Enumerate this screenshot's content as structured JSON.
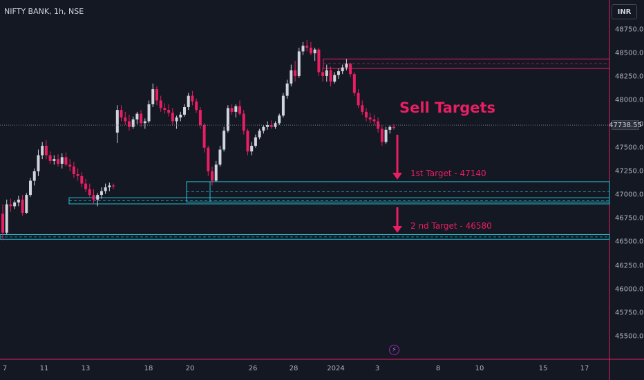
{
  "header": {
    "ticker": "NIFTY BANK, 1h, NSE",
    "currency": "INR"
  },
  "annotations": {
    "title": "Sell Targets",
    "target1": "1st Target - 47140",
    "target2": "2 nd Target - 46580"
  },
  "indicator_icon": "lightning-icon",
  "colors": {
    "background": "#141823",
    "up": "#d1d4dc",
    "down": "#e91e63",
    "zone": "#26c6da",
    "resistance": "#e91e63"
  },
  "chart_data": {
    "type": "candlestick",
    "symbol": "NIFTY BANK",
    "interval": "1h",
    "exchange": "NSE",
    "currency": "INR",
    "ylim": [
      45400,
      48900
    ],
    "y_ticks": [
      48750,
      48500,
      48250,
      48000,
      47750,
      47500,
      47250,
      47000,
      46750,
      46500,
      46250,
      46000,
      45750,
      45500
    ],
    "x_tick_labels": [
      "7",
      "11",
      "13",
      "18",
      "20",
      "26",
      "28",
      "2024",
      "3",
      "8",
      "10",
      "15",
      "17"
    ],
    "last_price": 47738.55,
    "candles": [
      [
        46800,
        46900,
        46520,
        46600
      ],
      [
        46600,
        46950,
        46580,
        46900
      ],
      [
        46900,
        46960,
        46820,
        46880
      ],
      [
        46880,
        46940,
        46850,
        46920
      ],
      [
        46920,
        46990,
        46880,
        46950
      ],
      [
        46950,
        47000,
        46780,
        46810
      ],
      [
        46810,
        47020,
        46800,
        47000
      ],
      [
        47000,
        47180,
        46980,
        47150
      ],
      [
        47150,
        47280,
        47100,
        47250
      ],
      [
        47250,
        47480,
        47200,
        47420
      ],
      [
        47420,
        47560,
        47380,
        47520
      ],
      [
        47520,
        47580,
        47380,
        47420
      ],
      [
        47420,
        47460,
        47330,
        47360
      ],
      [
        47360,
        47420,
        47320,
        47380
      ],
      [
        47380,
        47430,
        47300,
        47330
      ],
      [
        47330,
        47440,
        47280,
        47400
      ],
      [
        47400,
        47450,
        47300,
        47320
      ],
      [
        47320,
        47380,
        47250,
        47300
      ],
      [
        47300,
        47350,
        47180,
        47220
      ],
      [
        47220,
        47280,
        47150,
        47200
      ],
      [
        47200,
        47240,
        47080,
        47120
      ],
      [
        47120,
        47170,
        47030,
        47060
      ],
      [
        47060,
        47120,
        46980,
        47000
      ],
      [
        47000,
        47060,
        46900,
        46950
      ],
      [
        46950,
        47020,
        46880,
        47000
      ],
      [
        47000,
        47080,
        46960,
        47040
      ],
      [
        47040,
        47120,
        47010,
        47080
      ],
      [
        47080,
        47130,
        47040,
        47100
      ],
      [
        47100,
        47120,
        47060,
        47090
      ],
      [
        47660,
        47950,
        47550,
        47900
      ],
      [
        47900,
        47950,
        47780,
        47820
      ],
      [
        47820,
        47880,
        47740,
        47780
      ],
      [
        47780,
        47850,
        47680,
        47720
      ],
      [
        47720,
        47830,
        47700,
        47800
      ],
      [
        47800,
        47880,
        47750,
        47860
      ],
      [
        47860,
        47900,
        47720,
        47760
      ],
      [
        47760,
        47810,
        47700,
        47780
      ],
      [
        47780,
        48000,
        47760,
        47960
      ],
      [
        47960,
        48180,
        47930,
        48120
      ],
      [
        48120,
        48150,
        47950,
        48000
      ],
      [
        48000,
        48050,
        47880,
        47920
      ],
      [
        47920,
        47970,
        47860,
        47900
      ],
      [
        47900,
        47960,
        47830,
        47870
      ],
      [
        47870,
        47920,
        47740,
        47780
      ],
      [
        47780,
        47840,
        47700,
        47820
      ],
      [
        47820,
        47880,
        47780,
        47850
      ],
      [
        47850,
        47960,
        47830,
        47930
      ],
      [
        47930,
        48080,
        47900,
        48050
      ],
      [
        48050,
        48100,
        47950,
        47990
      ],
      [
        47990,
        48020,
        47870,
        47900
      ],
      [
        47900,
        47930,
        47700,
        47740
      ],
      [
        47740,
        47760,
        47450,
        47500
      ],
      [
        47500,
        47520,
        47200,
        47250
      ],
      [
        47250,
        47300,
        47100,
        47150
      ],
      [
        47150,
        47360,
        47140,
        47320
      ],
      [
        47320,
        47520,
        47300,
        47480
      ],
      [
        47480,
        47720,
        47460,
        47680
      ],
      [
        47680,
        47950,
        47660,
        47920
      ],
      [
        47920,
        47960,
        47850,
        47880
      ],
      [
        47880,
        47960,
        47820,
        47940
      ],
      [
        47940,
        48000,
        47840,
        47860
      ],
      [
        47860,
        47900,
        47640,
        47680
      ],
      [
        47680,
        47700,
        47420,
        47460
      ],
      [
        47460,
        47560,
        47420,
        47520
      ],
      [
        47520,
        47640,
        47500,
        47610
      ],
      [
        47610,
        47700,
        47590,
        47680
      ],
      [
        47680,
        47740,
        47650,
        47720
      ],
      [
        47720,
        47780,
        47690,
        47740
      ],
      [
        47740,
        47790,
        47700,
        47720
      ],
      [
        47720,
        47780,
        47700,
        47760
      ],
      [
        47760,
        47860,
        47740,
        47840
      ],
      [
        47840,
        48080,
        47820,
        48050
      ],
      [
        48050,
        48220,
        48020,
        48180
      ],
      [
        48180,
        48380,
        48150,
        48320
      ],
      [
        48320,
        48420,
        48200,
        48260
      ],
      [
        48260,
        48560,
        48240,
        48520
      ],
      [
        48520,
        48620,
        48480,
        48580
      ],
      [
        48580,
        48640,
        48520,
        48560
      ],
      [
        48560,
        48620,
        48480,
        48500
      ],
      [
        48500,
        48560,
        48420,
        48540
      ],
      [
        48540,
        48560,
        48260,
        48300
      ],
      [
        48300,
        48350,
        48200,
        48260
      ],
      [
        48260,
        48380,
        48200,
        48320
      ],
      [
        48320,
        48360,
        48150,
        48200
      ],
      [
        48200,
        48300,
        48180,
        48270
      ],
      [
        48270,
        48340,
        48230,
        48310
      ],
      [
        48310,
        48380,
        48280,
        48350
      ],
      [
        48350,
        48440,
        48320,
        48390
      ],
      [
        48390,
        48400,
        48250,
        48280
      ],
      [
        48280,
        48300,
        48050,
        48080
      ],
      [
        48080,
        48120,
        47920,
        47950
      ],
      [
        47950,
        48000,
        47850,
        47880
      ],
      [
        47880,
        47920,
        47780,
        47820
      ],
      [
        47820,
        47870,
        47760,
        47800
      ],
      [
        47800,
        47850,
        47740,
        47780
      ],
      [
        47780,
        47820,
        47660,
        47700
      ],
      [
        47700,
        47740,
        47520,
        47560
      ],
      [
        47560,
        47720,
        47540,
        47690
      ],
      [
        47690,
        47740,
        47650,
        47720
      ],
      [
        47720,
        47750,
        47690,
        47710
      ]
    ],
    "zones": [
      {
        "type": "resistance",
        "from": 48340,
        "to": 48440
      },
      {
        "type": "support",
        "from": 46925,
        "to": 47140
      },
      {
        "type": "support",
        "from": 46905,
        "to": 46970
      },
      {
        "type": "support",
        "from": 46530,
        "to": 46580
      }
    ],
    "targets": [
      47140,
      46580
    ]
  }
}
